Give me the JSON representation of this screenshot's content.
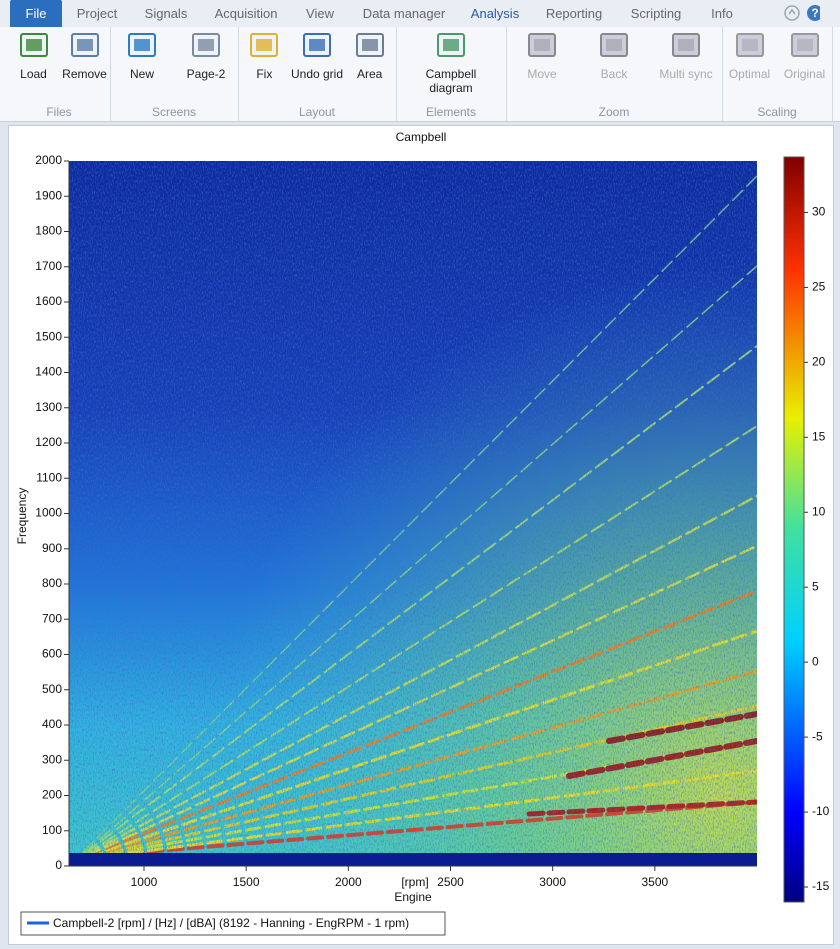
{
  "menu": {
    "tabs": [
      "File",
      "Project",
      "Signals",
      "Acquisition",
      "View",
      "Data manager",
      "Analysis",
      "Reporting",
      "Scripting",
      "Info"
    ],
    "file_tab": 0,
    "active_tab": 6
  },
  "ribbon": {
    "groups": [
      {
        "label": "Files",
        "buttons": [
          "Load",
          "Remove"
        ]
      },
      {
        "label": "Screens",
        "buttons": [
          "New",
          "Page-2"
        ]
      },
      {
        "label": "Layout",
        "buttons": [
          "Fix",
          "Undo grid",
          "Area"
        ]
      },
      {
        "label": "Elements",
        "buttons": [
          "Campbell diagram"
        ]
      },
      {
        "label": "Zoom",
        "buttons": [
          "Move",
          "Back",
          "Multi sync"
        ],
        "disabled": true
      },
      {
        "label": "Scaling",
        "buttons": [
          "Optimal",
          "Original"
        ],
        "disabled": true
      }
    ]
  },
  "chart_data": {
    "type": "heatmap",
    "title": "Campbell",
    "x_label": "Engine",
    "x_unit": "[rpm]",
    "y_label": "Frequency",
    "xlim": [
      633,
      4000
    ],
    "xticks": [
      1000,
      1500,
      2000,
      2500,
      3000,
      3500
    ],
    "ylim": [
      0,
      2000
    ],
    "yticks": [
      0,
      100,
      200,
      300,
      400,
      500,
      600,
      700,
      800,
      900,
      1000,
      1100,
      1200,
      1300,
      1400,
      1500,
      1600,
      1700,
      1800,
      1900,
      2000
    ],
    "colorbar": {
      "lim": [
        -16,
        33.7
      ],
      "ticks": [
        -15,
        -10,
        -5,
        0,
        5,
        10,
        15,
        20,
        25,
        30
      ]
    },
    "legend": "Campbell-2 [rpm] / [Hz] / [dBA] (8192 - Hanning - EngRPM - 1 rpm)"
  }
}
